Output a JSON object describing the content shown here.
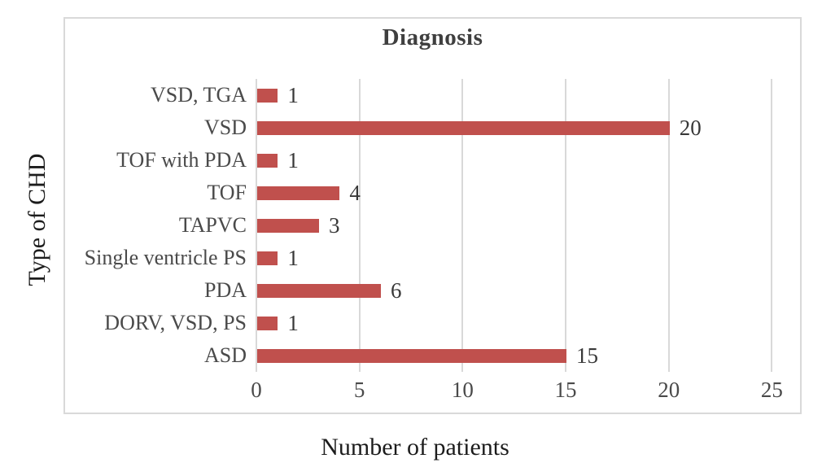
{
  "chart_data": {
    "type": "bar",
    "orientation": "horizontal",
    "title": "Diagnosis",
    "xlabel": "Number of patients",
    "ylabel": "Type of CHD",
    "categories": [
      "VSD, TGA",
      "VSD",
      "TOF with PDA",
      "TOF",
      "TAPVC",
      "Single ventricle PS",
      "PDA",
      "DORV, VSD, PS",
      "ASD"
    ],
    "values": [
      1,
      20,
      1,
      4,
      3,
      1,
      6,
      1,
      15
    ],
    "data_labels": [
      "1",
      "20",
      "1",
      "4",
      "3",
      "1",
      "6",
      "1",
      "15"
    ],
    "xlim": [
      0,
      25
    ],
    "xticks": [
      0,
      5,
      10,
      15,
      20,
      25
    ],
    "grid": "vertical-gridlines",
    "legend": "none",
    "colors": {
      "bar": "#C0504D",
      "gridline": "#D9D9D9",
      "chart_border": "#D9D9D9",
      "title_text": "#3F3F3F",
      "axis_title_text": "#1C1C1C",
      "tick_text": "#4A4A4A",
      "value_text": "#383838",
      "background": "#FFFFFF"
    }
  }
}
